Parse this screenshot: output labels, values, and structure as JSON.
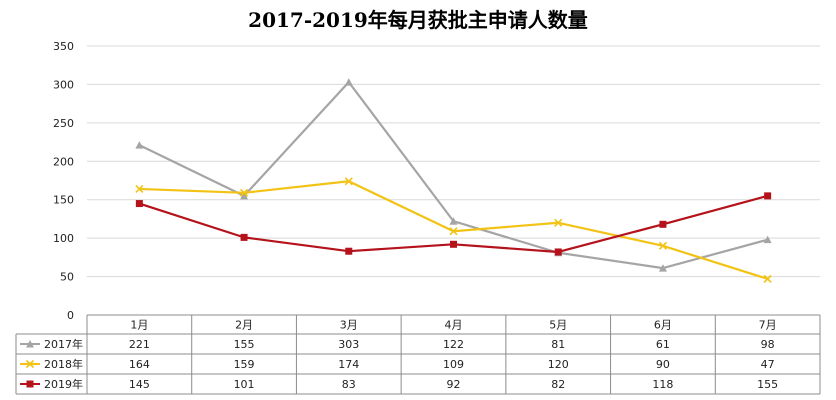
{
  "chart_data": {
    "type": "line",
    "title": "2017-2019年每月获批主申请人数量",
    "categories": [
      "1月",
      "2月",
      "3月",
      "4月",
      "5月",
      "6月",
      "7月"
    ],
    "ylim": [
      0,
      350
    ],
    "yticks": [
      0,
      50,
      100,
      150,
      200,
      250,
      300,
      350
    ],
    "grid": true,
    "legend": "data-table",
    "series": [
      {
        "name": "2017年",
        "color": "#a5a5a5",
        "marker": "triangle",
        "values": [
          221,
          155,
          303,
          122,
          81,
          61,
          98
        ]
      },
      {
        "name": "2018年",
        "color": "#f2c314",
        "marker": "x",
        "values": [
          164,
          159,
          174,
          109,
          120,
          90,
          47
        ]
      },
      {
        "name": "2019年",
        "color": "#b5121b",
        "marker": "square",
        "values": [
          145,
          101,
          83,
          92,
          82,
          118,
          155
        ]
      }
    ]
  }
}
